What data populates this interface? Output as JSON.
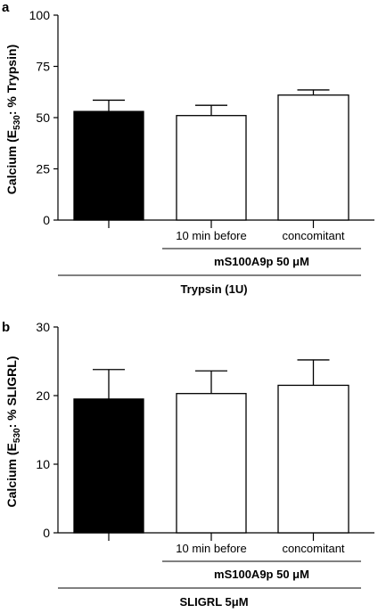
{
  "chart_data": [
    {
      "type": "bar",
      "panel_label": "a",
      "ylabel": {
        "main": "Calcium (E",
        "sub": "530",
        "rest": ": % Trypsin)"
      },
      "ylim": [
        0,
        100
      ],
      "yticks": [
        0,
        25,
        50,
        75,
        100
      ],
      "categories": [
        "",
        "10 min before",
        "concomitant"
      ],
      "values": [
        53,
        51,
        61
      ],
      "errors": [
        5.5,
        5,
        2.5
      ],
      "bar_colors": [
        "#000000",
        "#ffffff",
        "#ffffff"
      ],
      "group_label_1": "mS100A9p 50 μM",
      "group_label_2": "Trypsin (1U)"
    },
    {
      "type": "bar",
      "panel_label": "b",
      "ylabel": {
        "main": "Calcium (E",
        "sub": "530",
        "rest": ": % SLIGRL)"
      },
      "ylim": [
        0,
        30
      ],
      "yticks": [
        0,
        10,
        20,
        30
      ],
      "categories": [
        "",
        "10 min before",
        "concomitant"
      ],
      "values": [
        19.5,
        20.3,
        21.5
      ],
      "errors": [
        4.3,
        3.3,
        3.7
      ],
      "bar_colors": [
        "#000000",
        "#ffffff",
        "#ffffff"
      ],
      "group_label_1": "mS100A9p 50 μM",
      "group_label_2": "SLIGRL 5μM"
    }
  ]
}
